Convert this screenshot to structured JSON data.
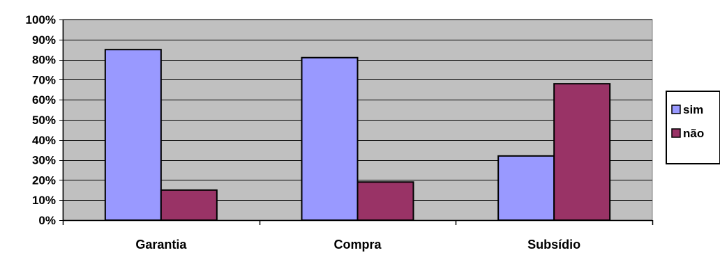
{
  "chart_data": {
    "type": "bar",
    "title": "",
    "xlabel": "",
    "ylabel": "",
    "categories": [
      "Garantia",
      "Compra",
      "Subsídio"
    ],
    "series": [
      {
        "name": "sim",
        "values": [
          85,
          81,
          32
        ],
        "color": "#9999FF"
      },
      {
        "name": "não",
        "values": [
          15,
          19,
          68
        ],
        "color": "#993366"
      }
    ],
    "ylim": [
      0,
      100
    ],
    "yticks": [
      0,
      10,
      20,
      30,
      40,
      50,
      60,
      70,
      80,
      90,
      100
    ],
    "ytick_labels": [
      "0%",
      "10%",
      "20%",
      "30%",
      "40%",
      "50%",
      "60%",
      "70%",
      "80%",
      "90%",
      "100%"
    ],
    "grid": true,
    "plot_background": "#C0C0C0",
    "legend_position": "right"
  }
}
